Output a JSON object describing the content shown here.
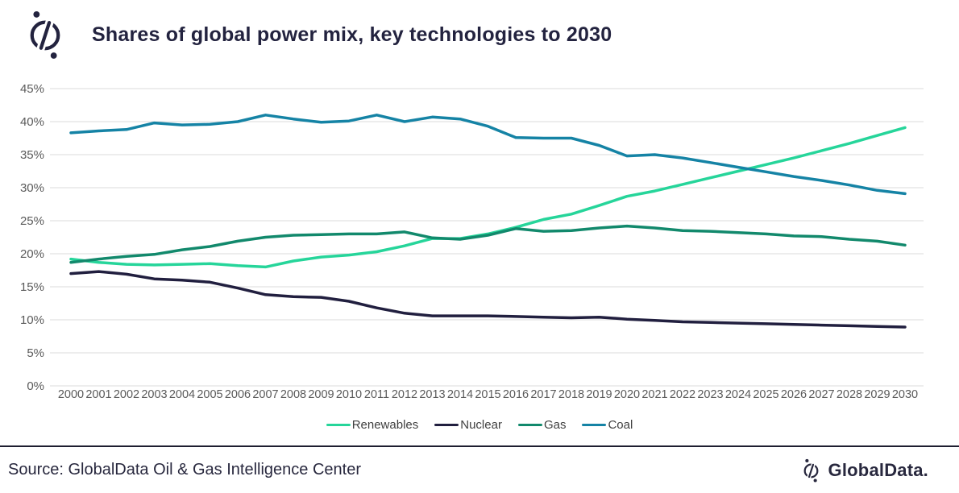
{
  "header": {
    "title": "Shares of global power mix, key technologies to 2030"
  },
  "footer": {
    "source": "Source: GlobalData Oil & Gas Intelligence Center",
    "brand": "GlobalData."
  },
  "colors": {
    "renewables": "#26D59A",
    "nuclear": "#211F3F",
    "gas": "#12896C",
    "coal": "#1583A5",
    "gridline": "#DBDBDB",
    "axis_text": "#5A5A5A",
    "title_text": "#23233F"
  },
  "chart_data": {
    "type": "line",
    "title": "Shares of global power mix, key technologies to 2030",
    "xlabel": "",
    "ylabel": "",
    "ylim": [
      0,
      45
    ],
    "grid": true,
    "legend_position": "bottom",
    "y_ticks": [
      "0%",
      "5%",
      "10%",
      "15%",
      "20%",
      "25%",
      "30%",
      "35%",
      "40%",
      "45%"
    ],
    "x": [
      2000,
      2001,
      2002,
      2003,
      2004,
      2005,
      2006,
      2007,
      2008,
      2009,
      2010,
      2011,
      2012,
      2013,
      2014,
      2015,
      2016,
      2017,
      2018,
      2019,
      2020,
      2021,
      2022,
      2023,
      2024,
      2025,
      2026,
      2027,
      2028,
      2029,
      2030
    ],
    "series": [
      {
        "name": "Renewables",
        "color": "#26D59A",
        "values": [
          19.2,
          18.7,
          18.4,
          18.3,
          18.4,
          18.5,
          18.2,
          18.0,
          18.9,
          19.5,
          19.8,
          20.3,
          21.2,
          22.3,
          22.3,
          23.0,
          24.0,
          25.2,
          26.0,
          27.3,
          28.7,
          29.5,
          30.5,
          31.5,
          32.5,
          33.5,
          34.5,
          35.6,
          36.7,
          37.9,
          39.1
        ]
      },
      {
        "name": "Nuclear",
        "color": "#211F3F",
        "values": [
          17.0,
          17.3,
          16.9,
          16.2,
          16.0,
          15.7,
          14.8,
          13.8,
          13.5,
          13.4,
          12.8,
          11.8,
          11.0,
          10.6,
          10.6,
          10.6,
          10.5,
          10.4,
          10.3,
          10.4,
          10.1,
          9.9,
          9.7,
          9.6,
          9.5,
          9.4,
          9.3,
          9.2,
          9.1,
          9.0,
          8.9
        ]
      },
      {
        "name": "Gas",
        "color": "#12896C",
        "values": [
          18.7,
          19.2,
          19.6,
          19.9,
          20.6,
          21.1,
          21.9,
          22.5,
          22.8,
          22.9,
          23.0,
          23.0,
          23.3,
          22.4,
          22.2,
          22.8,
          23.8,
          23.4,
          23.5,
          23.9,
          24.2,
          23.9,
          23.5,
          23.4,
          23.2,
          23.0,
          22.7,
          22.6,
          22.2,
          21.9,
          21.3
        ]
      },
      {
        "name": "Coal",
        "color": "#1583A5",
        "values": [
          38.3,
          38.6,
          38.8,
          39.8,
          39.5,
          39.6,
          40.0,
          41.0,
          40.4,
          39.9,
          40.1,
          41.0,
          40.0,
          40.7,
          40.4,
          39.3,
          37.6,
          37.5,
          37.5,
          36.4,
          34.8,
          35.0,
          34.5,
          33.8,
          33.1,
          32.4,
          31.7,
          31.1,
          30.4,
          29.6,
          29.1
        ]
      }
    ]
  }
}
